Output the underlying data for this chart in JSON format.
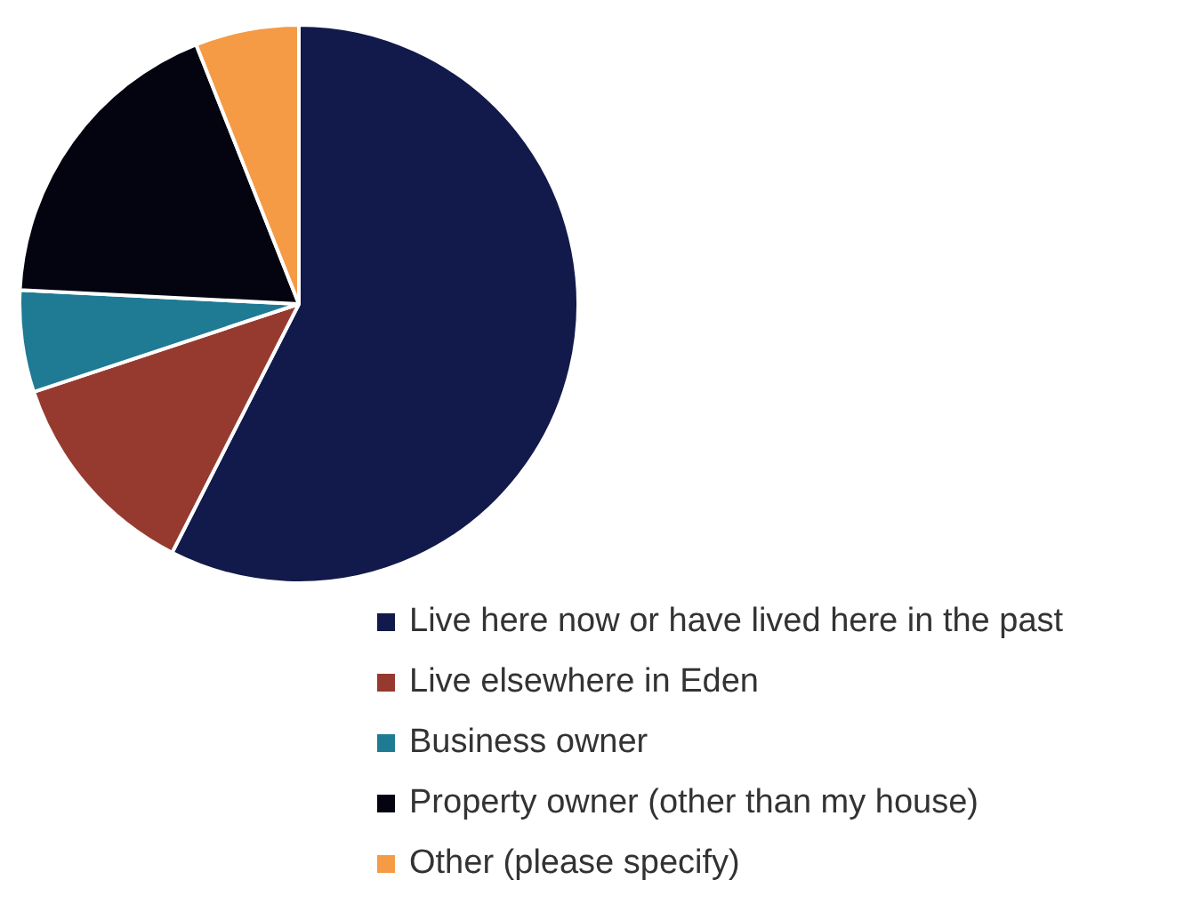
{
  "chart_data": {
    "type": "pie",
    "categories": [
      "Live here now or have lived here in the past",
      "Live elsewhere in Eden",
      "Business owner",
      "Property owner (other than my house)",
      "Other (please specify)"
    ],
    "values": [
      57.5,
      12.4,
      5.9,
      18.2,
      6.0
    ],
    "colors": [
      "#111a4a",
      "#963a30",
      "#1f7a94",
      "#03040f",
      "#f59a45"
    ],
    "legend": "bottom right"
  }
}
